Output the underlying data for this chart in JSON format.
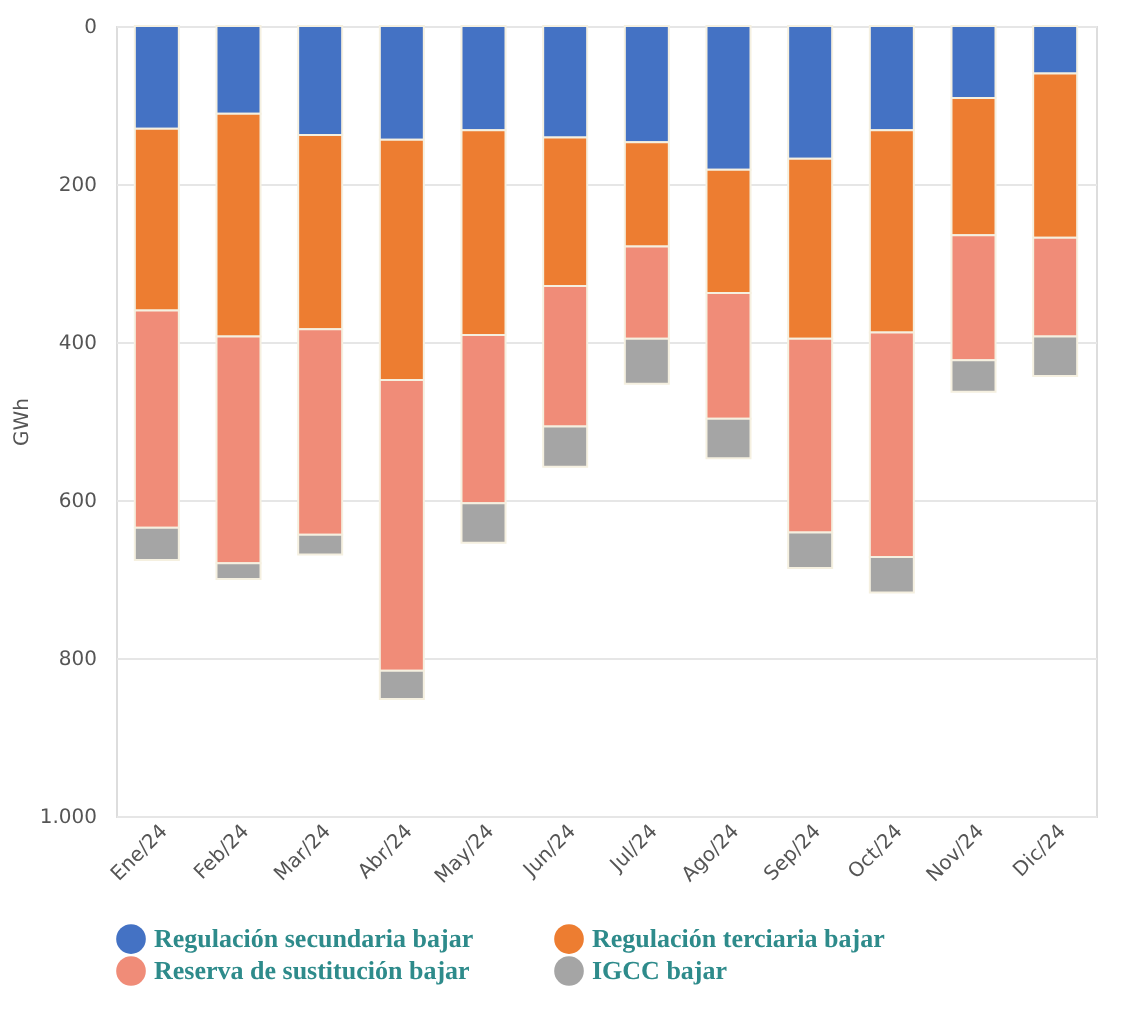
{
  "chart_data": {
    "type": "bar",
    "stacked": true,
    "ylabel": "GWh",
    "categories": [
      "Ene/24",
      "Feb/24",
      "Mar/24",
      "Abr/24",
      "May/24",
      "Jun/24",
      "Jul/24",
      "Ago/24",
      "Sep/24",
      "Oct/24",
      "Nov/24",
      "Dic/24"
    ],
    "series": [
      {
        "name": "Regulación secundaria bajar",
        "color": "#4472c4",
        "values": [
          130,
          111,
          138,
          144,
          132,
          141,
          147,
          182,
          168,
          132,
          91,
          60
        ]
      },
      {
        "name": "Regulación terciaria bajar",
        "color": "#ed7d31",
        "values": [
          230,
          282,
          246,
          304,
          259,
          188,
          132,
          156,
          228,
          256,
          174,
          208
        ]
      },
      {
        "name": "Reserva de sustitución bajar",
        "color": "#f08c78",
        "values": [
          275,
          287,
          260,
          368,
          213,
          178,
          117,
          159,
          245,
          284,
          158,
          125
        ]
      },
      {
        "name": "IGCC bajar",
        "color": "#a5a5a5",
        "values": [
          41,
          20,
          25,
          36,
          50,
          51,
          57,
          50,
          45,
          45,
          40,
          50
        ]
      }
    ],
    "ylim": [
      1000,
      0
    ],
    "yticks": [
      0,
      200,
      400,
      600,
      800,
      {
        "value": 1000,
        "label": "1.000"
      }
    ],
    "grid": "y",
    "legend": "bottom"
  }
}
